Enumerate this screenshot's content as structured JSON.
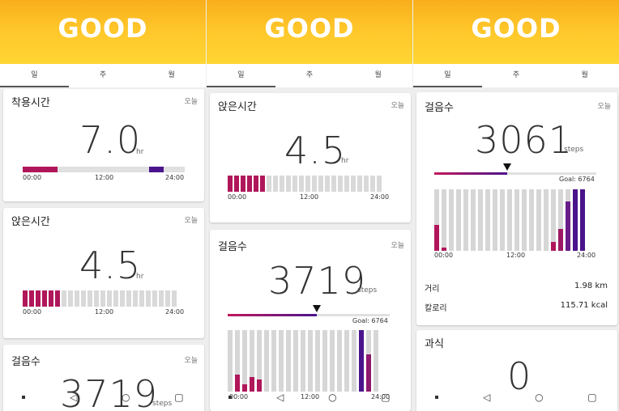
{
  "banner": {
    "label": "GOOD"
  },
  "tabs": [
    "일",
    "주",
    "월"
  ],
  "colors": {
    "banner": "#ffc62a",
    "accent": "#b0165a",
    "accent_dark": "#4a148c"
  },
  "screen1": {
    "wear": {
      "title": "착용시간",
      "date": "오늘",
      "value": "7.0",
      "unit": "hr",
      "ticks": [
        "00:00",
        "12:00",
        "24:00"
      ]
    },
    "sitting": {
      "title": "앉은시간",
      "date": "오늘",
      "value": "4.5",
      "unit": "hr",
      "ticks": [
        "00:00",
        "12:00",
        "24:00"
      ],
      "active_blocks": 6,
      "total_blocks": 24
    },
    "steps": {
      "title": "걸음수",
      "date": "오늘",
      "value": "3719",
      "unit": "steps"
    }
  },
  "screen2": {
    "sitting": {
      "title": "앉은시간",
      "date": "오늘",
      "value": "4.5",
      "unit": "hr",
      "ticks": [
        "00:00",
        "12:00",
        "24:00"
      ],
      "active_blocks": 6,
      "total_blocks": 24
    },
    "steps": {
      "title": "걸음수",
      "date": "오늘",
      "value": "3719",
      "unit": "steps",
      "goal": "Goal: 6764",
      "progress": 0.55,
      "ticks": [
        "00:00",
        "12:00",
        "24:00"
      ]
    }
  },
  "screen3": {
    "steps": {
      "title": "걸음수",
      "date": "오늘",
      "value": "3061",
      "unit": "steps",
      "goal": "Goal: 6764",
      "progress": 0.45,
      "ticks": [
        "00:00",
        "12:00",
        "24:00"
      ],
      "distance_label": "거리",
      "distance_value": "1.98",
      "distance_unit": "km",
      "calorie_label": "칼로리",
      "calorie_value": "115.71",
      "calorie_unit": "kcal"
    },
    "overeat": {
      "title": "과식",
      "value": "0"
    }
  }
}
